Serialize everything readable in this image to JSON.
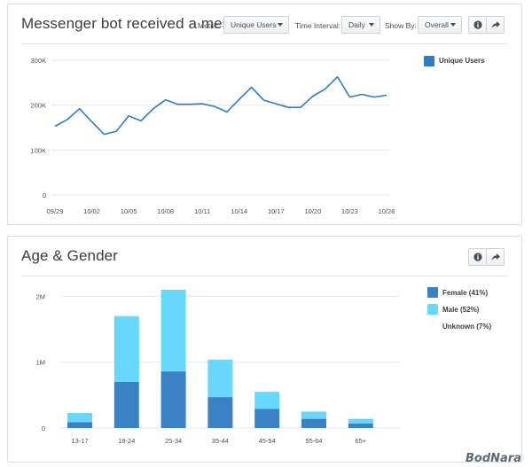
{
  "messenger_card": {
    "title": "Messenger bot received a message",
    "metric_label": "Metric:",
    "metric_value": "Unique Users",
    "interval_label": "Time Interval:",
    "interval_value": "Daily",
    "showby_label": "Show By:",
    "showby_value": "Overall",
    "info_icon": "info-icon",
    "share_icon": "share-icon",
    "legend": [
      {
        "label": "Unique Users",
        "color": "#2f7dc0"
      }
    ]
  },
  "age_gender_card": {
    "title": "Age & Gender",
    "info_icon": "info-icon",
    "share_icon": "share-icon",
    "legend": [
      {
        "label": "Female (41%)",
        "color": "#3a82c4"
      },
      {
        "label": "Male (52%)",
        "color": "#67d7fb"
      },
      {
        "label": "Unknown (7%)",
        "color": "#ffffff"
      }
    ]
  },
  "watermark": "BodNara",
  "chart_data": [
    {
      "type": "line",
      "title": "Messenger bot received a message",
      "series": [
        {
          "name": "Unique Users",
          "values": [
            153000,
            168000,
            192000,
            163000,
            135000,
            142000,
            176000,
            165000,
            192000,
            212000,
            202000,
            202000,
            203000,
            197000,
            185000,
            213000,
            240000,
            211000,
            203000,
            195000,
            195000,
            220000,
            236000,
            263000,
            218000,
            224000,
            218000,
            222000
          ]
        }
      ],
      "x_tick_labels": [
        "09/29",
        "10/02",
        "10/05",
        "10/08",
        "10/11",
        "10/14",
        "10/17",
        "10/20",
        "10/23",
        "10/26"
      ],
      "x_tick_positions": [
        0,
        3,
        6,
        9,
        12,
        15,
        18,
        21,
        24,
        27
      ],
      "y_ticks": [
        0,
        100000,
        200000,
        300000
      ],
      "y_tick_labels": [
        "0",
        "100K",
        "200K",
        "300K"
      ],
      "ylim": [
        0,
        300000
      ],
      "color": "#2f7dc0",
      "grid": "horizontal",
      "legend_position": "right"
    },
    {
      "type": "bar",
      "title": "Age & Gender",
      "stacked": true,
      "categories": [
        "13-17",
        "18-24",
        "25-34",
        "35-44",
        "45-54",
        "55-64",
        "65+"
      ],
      "series": [
        {
          "name": "Female (41%)",
          "color": "#3a82c4",
          "values": [
            90000,
            700000,
            860000,
            470000,
            290000,
            140000,
            70000
          ]
        },
        {
          "name": "Male (52%)",
          "color": "#67d7fb",
          "values": [
            140000,
            1000000,
            1240000,
            570000,
            260000,
            110000,
            70000
          ]
        }
      ],
      "y_ticks": [
        0,
        1000000,
        2000000
      ],
      "y_tick_labels": [
        "0",
        "1M",
        "2M"
      ],
      "ylim": [
        0,
        2100000
      ],
      "grid": "horizontal",
      "legend_position": "right"
    }
  ]
}
